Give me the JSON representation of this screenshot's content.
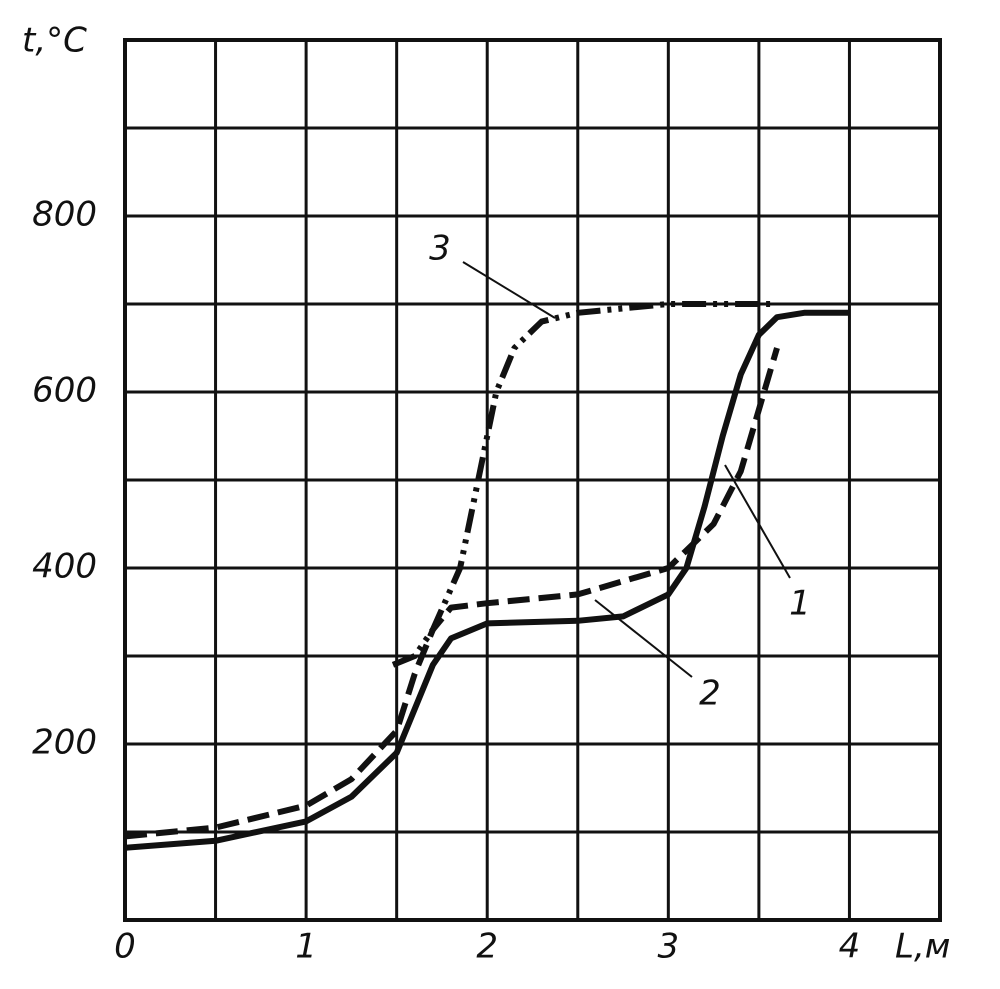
{
  "chart_data": {
    "type": "line",
    "y_label": "t,°C",
    "x_label": "L,м",
    "xlim": [
      0,
      4.5
    ],
    "ylim": [
      0,
      1000
    ],
    "xticks": [
      0,
      1,
      2,
      3,
      4
    ],
    "yticks": [
      200,
      400,
      600,
      800
    ],
    "xminor": [
      0.5,
      1.5,
      2.5,
      3.5,
      4.5
    ],
    "yminor": [
      100,
      300,
      500,
      700,
      900,
      1000
    ],
    "grid": true,
    "series": [
      {
        "name": "1",
        "color": "#111111",
        "style": "solid",
        "x": [
          0,
          0.5,
          1,
          1.25,
          1.5,
          1.6,
          1.7,
          1.8,
          2,
          2.5,
          2.75,
          3,
          3.1,
          3.2,
          3.3,
          3.4,
          3.5,
          3.6,
          3.75,
          4
        ],
        "values": [
          82,
          90,
          112,
          140,
          190,
          240,
          290,
          320,
          337,
          340,
          345,
          370,
          400,
          470,
          550,
          620,
          665,
          685,
          690,
          690
        ]
      },
      {
        "name": "2",
        "color": "#111111",
        "style": "dashed",
        "x": [
          0,
          0.5,
          1,
          1.25,
          1.5,
          1.6,
          1.7,
          1.8,
          2,
          2.5,
          3,
          3.25,
          3.4,
          3.5,
          3.6
        ],
        "values": [
          95,
          105,
          130,
          160,
          215,
          280,
          330,
          355,
          360,
          370,
          400,
          450,
          510,
          580,
          650
        ]
      },
      {
        "name": "3",
        "color": "#111111",
        "style": "dashdotdot",
        "x": [
          1.48,
          1.6,
          1.7,
          1.85,
          1.95,
          2.05,
          2.15,
          2.3,
          2.5,
          3,
          3.6
        ],
        "values": [
          290,
          300,
          330,
          400,
          500,
          600,
          650,
          680,
          690,
          700,
          700
        ]
      }
    ]
  }
}
